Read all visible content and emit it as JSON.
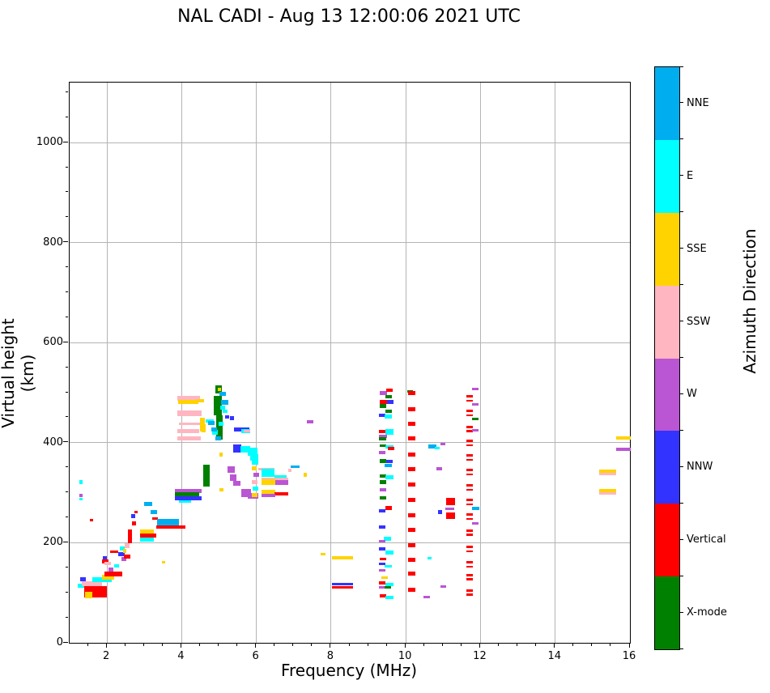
{
  "title": "NAL CADI - Aug 13 12:00:06 2021 UTC",
  "chart_data": {
    "type": "scatter",
    "title": "NAL CADI - Aug 13 12:00:06 2021 UTC",
    "xlabel": "Frequency (MHz)",
    "ylabel": "Virtual height (km)",
    "xlim": [
      1,
      16
    ],
    "ylim": [
      0,
      1120
    ],
    "xticks": [
      2,
      4,
      6,
      8,
      10,
      12,
      14,
      16
    ],
    "yticks": [
      0,
      200,
      400,
      600,
      800,
      1000
    ],
    "x_minor_step": 0.5,
    "y_minor_step": 50,
    "grid": true,
    "grid_color": "#b4b4b4",
    "colorbar": {
      "title": "Azimuth Direction",
      "entries": [
        {
          "label": "NNE",
          "color": "#00AEEF"
        },
        {
          "label": "E",
          "color": "#00FFFF"
        },
        {
          "label": "SSE",
          "color": "#FFD300"
        },
        {
          "label": "SSW",
          "color": "#FFB6C1"
        },
        {
          "label": "W",
          "color": "#BA55D3"
        },
        {
          "label": "NNW",
          "color": "#3333FF"
        },
        {
          "label": "Vertical",
          "color": "#FF0000"
        },
        {
          "label": "X-mode",
          "color": "#008000"
        }
      ]
    },
    "point_format": "[freq_MHz_left, height_km_top, width_MHz, height_km, azimuth_key]",
    "points": [
      [
        1.22,
        118,
        0.17,
        8,
        "E"
      ],
      [
        1.28,
        131,
        0.15,
        8,
        "NNW"
      ],
      [
        1.39,
        113,
        0.61,
        23,
        "V"
      ],
      [
        1.41,
        102,
        0.2,
        13,
        "SSE"
      ],
      [
        1.33,
        123,
        0.54,
        10,
        "SSW"
      ],
      [
        1.61,
        131,
        0.52,
        10,
        "E"
      ],
      [
        1.87,
        136,
        0.33,
        10,
        "SSE"
      ],
      [
        1.93,
        142,
        0.48,
        10,
        "V"
      ],
      [
        2.04,
        150,
        0.13,
        7,
        "W"
      ],
      [
        2.19,
        157,
        0.13,
        7,
        "E"
      ],
      [
        1.26,
        325,
        0.09,
        7,
        "E"
      ],
      [
        1.26,
        298,
        0.09,
        7,
        "W"
      ],
      [
        1.26,
        290,
        0.09,
        5,
        "E"
      ],
      [
        1.54,
        248,
        0.09,
        5,
        "V"
      ],
      [
        1.87,
        167,
        0.17,
        8,
        "V"
      ],
      [
        1.93,
        162,
        0.17,
        7,
        "SSW"
      ],
      [
        1.89,
        173,
        0.11,
        7,
        "NNW"
      ],
      [
        2.08,
        184,
        0.22,
        5,
        "V"
      ],
      [
        2.3,
        181,
        0.17,
        8,
        "NNW"
      ],
      [
        2.39,
        171,
        0.13,
        7,
        "W"
      ],
      [
        2.45,
        176,
        0.17,
        8,
        "V"
      ],
      [
        2.34,
        192,
        0.13,
        8,
        "E"
      ],
      [
        2.43,
        187,
        0.09,
        7,
        "SSE"
      ],
      [
        2.47,
        199,
        0.13,
        10,
        "SSW"
      ],
      [
        2.56,
        227,
        0.11,
        28,
        "V"
      ],
      [
        2.67,
        243,
        0.11,
        8,
        "V"
      ],
      [
        2.65,
        257,
        0.11,
        8,
        "NNW"
      ],
      [
        2.73,
        264,
        0.09,
        5,
        "V"
      ],
      [
        2.89,
        227,
        0.37,
        8,
        "SSE"
      ],
      [
        2.89,
        218,
        0.43,
        8,
        "V"
      ],
      [
        2.89,
        210,
        0.37,
        8,
        "E"
      ],
      [
        3.17,
        265,
        0.17,
        7,
        "NNE"
      ],
      [
        3.21,
        251,
        0.15,
        5,
        "V"
      ],
      [
        2.99,
        282,
        0.22,
        8,
        "NNE"
      ],
      [
        3.34,
        248,
        0.59,
        16,
        "NNE"
      ],
      [
        3.32,
        235,
        0.78,
        7,
        "V"
      ],
      [
        3.47,
        163,
        0.09,
        5,
        "SSE"
      ],
      [
        3.88,
        494,
        0.61,
        10,
        "SSW"
      ],
      [
        3.91,
        485,
        0.54,
        7,
        "SSE"
      ],
      [
        3.88,
        464,
        0.65,
        11,
        "SSW"
      ],
      [
        3.93,
        440,
        0.59,
        4,
        "SSW"
      ],
      [
        3.88,
        427,
        0.59,
        8,
        "SSW"
      ],
      [
        3.88,
        413,
        0.63,
        8,
        "SSW"
      ],
      [
        4.49,
        450,
        0.13,
        28,
        "SSE"
      ],
      [
        4.43,
        487,
        0.17,
        7,
        "SSE"
      ],
      [
        3.82,
        307,
        0.72,
        7,
        "W"
      ],
      [
        3.82,
        301,
        0.65,
        8,
        "X"
      ],
      [
        3.82,
        293,
        0.72,
        8,
        "NNW"
      ],
      [
        3.93,
        285,
        0.33,
        5,
        "E"
      ],
      [
        4.9,
        515,
        0.17,
        16,
        "X"
      ],
      [
        4.86,
        494,
        0.22,
        40,
        "X"
      ],
      [
        4.92,
        455,
        0.17,
        48,
        "X"
      ],
      [
        5.01,
        502,
        0.17,
        8,
        "NNE"
      ],
      [
        5.05,
        486,
        0.2,
        10,
        "NNE"
      ],
      [
        5.03,
        474,
        0.13,
        8,
        "E"
      ],
      [
        4.97,
        510,
        0.09,
        7,
        "SSE"
      ],
      [
        5.1,
        466,
        0.13,
        7,
        "E"
      ],
      [
        4.99,
        442,
        0.13,
        8,
        "E"
      ],
      [
        5.16,
        455,
        0.11,
        7,
        "NNW"
      ],
      [
        5.29,
        453,
        0.11,
        8,
        "NNW"
      ],
      [
        4.64,
        447,
        0.22,
        7,
        "E"
      ],
      [
        4.53,
        437,
        0.11,
        16,
        "SSE"
      ],
      [
        4.81,
        426,
        0.15,
        10,
        "E"
      ],
      [
        4.9,
        413,
        0.15,
        8,
        "NNE"
      ],
      [
        4.71,
        443,
        0.17,
        8,
        "NNE"
      ],
      [
        4.79,
        430,
        0.15,
        8,
        "NNE"
      ],
      [
        5.4,
        430,
        0.41,
        7,
        "NNW"
      ],
      [
        5.6,
        427,
        0.24,
        8,
        "E"
      ],
      [
        5.66,
        426,
        0.17,
        5,
        "SSW"
      ],
      [
        5.38,
        396,
        0.22,
        15,
        "NNW"
      ],
      [
        5.58,
        393,
        0.26,
        13,
        "E"
      ],
      [
        5.77,
        390,
        0.26,
        16,
        "E"
      ],
      [
        5.83,
        377,
        0.22,
        13,
        "E"
      ],
      [
        5.23,
        353,
        0.2,
        13,
        "W"
      ],
      [
        5.29,
        337,
        0.17,
        13,
        "W"
      ],
      [
        5.38,
        324,
        0.2,
        10,
        "W"
      ],
      [
        4.58,
        356,
        0.17,
        44,
        "X"
      ],
      [
        5.6,
        307,
        0.26,
        16,
        "W"
      ],
      [
        5.77,
        299,
        0.28,
        11,
        "W"
      ],
      [
        5.01,
        380,
        0.09,
        7,
        "SSE"
      ],
      [
        5.01,
        309,
        0.11,
        7,
        "SSE"
      ],
      [
        5.88,
        366,
        0.17,
        10,
        "E"
      ],
      [
        5.88,
        353,
        0.13,
        8,
        "SSE"
      ],
      [
        5.92,
        340,
        0.15,
        8,
        "W"
      ],
      [
        5.88,
        325,
        0.15,
        8,
        "SSW"
      ],
      [
        5.9,
        312,
        0.15,
        8,
        "E"
      ],
      [
        5.88,
        299,
        0.15,
        8,
        "SSE"
      ],
      [
        6.05,
        350,
        0.43,
        5,
        "SSW"
      ],
      [
        6.14,
        348,
        0.35,
        16,
        "E"
      ],
      [
        6.49,
        335,
        0.33,
        7,
        "E"
      ],
      [
        6.14,
        330,
        0.72,
        5,
        "SSW"
      ],
      [
        6.14,
        327,
        0.39,
        11,
        "SSE"
      ],
      [
        6.51,
        325,
        0.35,
        10,
        "W"
      ],
      [
        6.92,
        354,
        0.24,
        5,
        "NNE"
      ],
      [
        6.85,
        348,
        0.09,
        7,
        "SSW"
      ],
      [
        7.27,
        340,
        0.09,
        8,
        "SSE"
      ],
      [
        6.14,
        306,
        0.37,
        10,
        "SSE"
      ],
      [
        6.49,
        301,
        0.37,
        7,
        "V"
      ],
      [
        6.14,
        298,
        0.37,
        7,
        "W"
      ],
      [
        7.35,
        445,
        0.17,
        7,
        "W"
      ],
      [
        7.72,
        180,
        0.13,
        5,
        "SSE"
      ],
      [
        8.02,
        173,
        0.56,
        7,
        "SSE"
      ],
      [
        8.02,
        120,
        0.56,
        5,
        "NNW"
      ],
      [
        8.02,
        114,
        0.56,
        6,
        "V"
      ],
      [
        9.3,
        503,
        0.2,
        7,
        "W"
      ],
      [
        9.48,
        508,
        0.17,
        7,
        "V"
      ],
      [
        9.46,
        495,
        0.17,
        7,
        "X"
      ],
      [
        9.3,
        485,
        0.2,
        7,
        "V"
      ],
      [
        9.5,
        485,
        0.17,
        7,
        "NNW"
      ],
      [
        9.3,
        477,
        0.17,
        7,
        "X"
      ],
      [
        9.46,
        466,
        0.17,
        7,
        "X"
      ],
      [
        9.28,
        458,
        0.17,
        7,
        "NNW"
      ],
      [
        9.43,
        456,
        0.2,
        8,
        "E"
      ],
      [
        9.28,
        426,
        0.2,
        7,
        "V"
      ],
      [
        9.46,
        427,
        0.22,
        11,
        "E"
      ],
      [
        9.28,
        416,
        0.22,
        7,
        "W"
      ],
      [
        9.28,
        411,
        0.2,
        7,
        "X"
      ],
      [
        9.3,
        396,
        0.17,
        5,
        "X"
      ],
      [
        9.46,
        395,
        0.2,
        7,
        "E"
      ],
      [
        9.52,
        392,
        0.17,
        7,
        "V"
      ],
      [
        9.28,
        384,
        0.17,
        7,
        "W"
      ],
      [
        9.3,
        367,
        0.17,
        7,
        "X"
      ],
      [
        9.48,
        366,
        0.17,
        7,
        "NNW"
      ],
      [
        9.43,
        358,
        0.2,
        7,
        "NNE"
      ],
      [
        9.3,
        337,
        0.17,
        7,
        "X"
      ],
      [
        9.46,
        335,
        0.2,
        8,
        "E"
      ],
      [
        9.3,
        325,
        0.17,
        7,
        "X"
      ],
      [
        9.3,
        309,
        0.17,
        7,
        "W"
      ],
      [
        9.3,
        293,
        0.17,
        7,
        "X"
      ],
      [
        9.46,
        273,
        0.17,
        7,
        "V"
      ],
      [
        9.28,
        267,
        0.17,
        7,
        "NNW"
      ],
      [
        9.28,
        235,
        0.17,
        7,
        "NNW"
      ],
      [
        9.41,
        212,
        0.2,
        8,
        "E"
      ],
      [
        9.28,
        205,
        0.17,
        5,
        "W"
      ],
      [
        9.28,
        191,
        0.17,
        7,
        "NNW"
      ],
      [
        9.46,
        184,
        0.2,
        7,
        "E"
      ],
      [
        9.3,
        170,
        0.17,
        5,
        "V"
      ],
      [
        9.28,
        160,
        0.17,
        5,
        "NNW"
      ],
      [
        9.43,
        155,
        0.2,
        5,
        "E"
      ],
      [
        9.28,
        147,
        0.17,
        5,
        "W"
      ],
      [
        9.35,
        133,
        0.17,
        5,
        "SSE"
      ],
      [
        9.28,
        123,
        0.17,
        7,
        "V"
      ],
      [
        9.46,
        120,
        0.2,
        7,
        "E"
      ],
      [
        9.28,
        113,
        0.17,
        5,
        "W"
      ],
      [
        9.43,
        113,
        0.17,
        5,
        "X"
      ],
      [
        9.3,
        97,
        0.17,
        7,
        "V"
      ],
      [
        9.46,
        94,
        0.2,
        7,
        "E"
      ],
      [
        10.04,
        505,
        0.15,
        5,
        "X"
      ],
      [
        10.06,
        503,
        0.2,
        8,
        "V"
      ],
      [
        10.06,
        471,
        0.2,
        8,
        "V"
      ],
      [
        10.06,
        442,
        0.2,
        8,
        "V"
      ],
      [
        10.06,
        413,
        0.2,
        8,
        "V"
      ],
      [
        10.06,
        380,
        0.2,
        8,
        "V"
      ],
      [
        10.06,
        351,
        0.2,
        8,
        "V"
      ],
      [
        10.06,
        320,
        0.2,
        8,
        "V"
      ],
      [
        10.06,
        290,
        0.2,
        8,
        "V"
      ],
      [
        10.06,
        259,
        0.2,
        8,
        "V"
      ],
      [
        10.06,
        230,
        0.2,
        8,
        "V"
      ],
      [
        10.06,
        199,
        0.2,
        8,
        "V"
      ],
      [
        10.06,
        170,
        0.2,
        8,
        "V"
      ],
      [
        10.06,
        142,
        0.2,
        8,
        "V"
      ],
      [
        10.06,
        110,
        0.2,
        8,
        "V"
      ],
      [
        10.61,
        396,
        0.22,
        7,
        "NNE"
      ],
      [
        10.78,
        392,
        0.13,
        5,
        "E"
      ],
      [
        10.93,
        400,
        0.13,
        5,
        "W"
      ],
      [
        10.82,
        351,
        0.15,
        7,
        "W"
      ],
      [
        10.86,
        265,
        0.11,
        7,
        "NNW"
      ],
      [
        11.06,
        270,
        0.24,
        5,
        "W"
      ],
      [
        11.08,
        290,
        0.24,
        15,
        "V"
      ],
      [
        11.08,
        261,
        0.24,
        13,
        "V"
      ],
      [
        10.93,
        115,
        0.15,
        5,
        "W"
      ],
      [
        10.48,
        94,
        0.17,
        5,
        "W"
      ],
      [
        10.59,
        172,
        0.11,
        5,
        "E"
      ],
      [
        11.62,
        495,
        0.17,
        5,
        "V"
      ],
      [
        11.62,
        486,
        0.17,
        4,
        "V"
      ],
      [
        11.62,
        466,
        0.17,
        5,
        "V"
      ],
      [
        11.62,
        457,
        0.17,
        4,
        "V"
      ],
      [
        11.62,
        434,
        0.17,
        5,
        "V"
      ],
      [
        11.62,
        425,
        0.17,
        4,
        "V"
      ],
      [
        11.62,
        406,
        0.17,
        5,
        "V"
      ],
      [
        11.62,
        397,
        0.17,
        4,
        "V"
      ],
      [
        11.62,
        377,
        0.17,
        5,
        "V"
      ],
      [
        11.62,
        368,
        0.17,
        4,
        "V"
      ],
      [
        11.62,
        348,
        0.17,
        5,
        "V"
      ],
      [
        11.62,
        339,
        0.17,
        4,
        "V"
      ],
      [
        11.62,
        317,
        0.17,
        5,
        "V"
      ],
      [
        11.62,
        308,
        0.17,
        4,
        "V"
      ],
      [
        11.62,
        288,
        0.17,
        5,
        "V"
      ],
      [
        11.62,
        279,
        0.17,
        4,
        "V"
      ],
      [
        11.62,
        259,
        0.17,
        5,
        "V"
      ],
      [
        11.62,
        250,
        0.17,
        4,
        "V"
      ],
      [
        11.62,
        227,
        0.17,
        5,
        "V"
      ],
      [
        11.62,
        218,
        0.17,
        4,
        "V"
      ],
      [
        11.62,
        194,
        0.17,
        5,
        "V"
      ],
      [
        11.62,
        185,
        0.17,
        4,
        "V"
      ],
      [
        11.62,
        163,
        0.17,
        5,
        "V"
      ],
      [
        11.62,
        154,
        0.17,
        4,
        "V"
      ],
      [
        11.62,
        138,
        0.17,
        5,
        "V"
      ],
      [
        11.62,
        129,
        0.17,
        4,
        "V"
      ],
      [
        11.62,
        107,
        0.17,
        5,
        "V"
      ],
      [
        11.62,
        98,
        0.17,
        4,
        "V"
      ],
      [
        11.77,
        510,
        0.17,
        5,
        "W"
      ],
      [
        11.77,
        479,
        0.17,
        5,
        "W"
      ],
      [
        11.77,
        450,
        0.17,
        5,
        "X"
      ],
      [
        11.77,
        427,
        0.17,
        5,
        "W"
      ],
      [
        11.77,
        272,
        0.2,
        7,
        "NNE"
      ],
      [
        11.77,
        241,
        0.17,
        5,
        "W"
      ],
      [
        15.63,
        413,
        0.39,
        7,
        "SSE"
      ],
      [
        15.63,
        390,
        0.39,
        7,
        "W"
      ],
      [
        15.18,
        346,
        0.46,
        7,
        "SSE"
      ],
      [
        15.18,
        340,
        0.46,
        5,
        "SSW"
      ],
      [
        15.18,
        307,
        0.46,
        7,
        "SSE"
      ],
      [
        15.18,
        301,
        0.46,
        5,
        "SSW"
      ]
    ]
  }
}
